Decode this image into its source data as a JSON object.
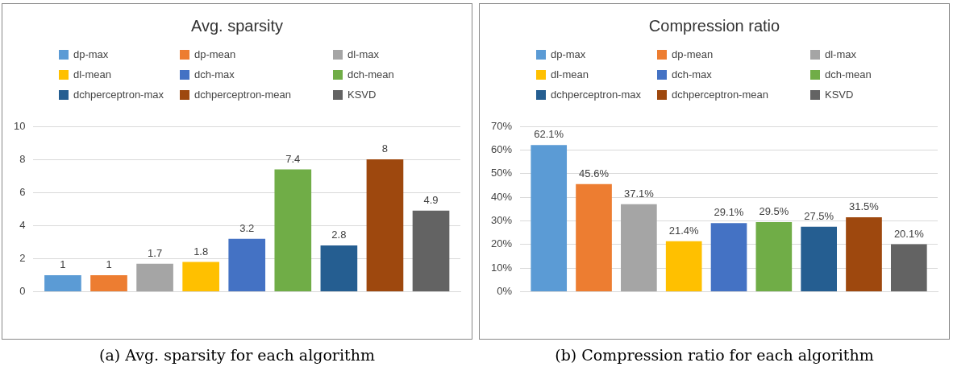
{
  "chart_data": [
    {
      "type": "bar",
      "title": "Avg. sparsity",
      "categories": [
        null
      ],
      "legend": "top",
      "grid": "y",
      "ylim": [
        0,
        10
      ],
      "yticks": [
        0,
        2,
        4,
        6,
        8,
        10
      ],
      "data_labels": true,
      "annotations": [
        "(a) Avg. sparsity for each algorithm"
      ],
      "series": [
        {
          "name": "dp-max",
          "color": "#5b9bd5",
          "values": [
            1
          ]
        },
        {
          "name": "dp-mean",
          "color": "#ed7d31",
          "values": [
            1
          ]
        },
        {
          "name": "dl-max",
          "color": "#a5a5a5",
          "values": [
            1.7
          ]
        },
        {
          "name": "dl-mean",
          "color": "#ffc000",
          "values": [
            1.8
          ]
        },
        {
          "name": "dch-max",
          "color": "#4472c4",
          "values": [
            3.2
          ]
        },
        {
          "name": "dch-mean",
          "color": "#70ad47",
          "values": [
            7.4
          ]
        },
        {
          "name": "dchperceptron-max",
          "color": "#255e91",
          "values": [
            2.8
          ]
        },
        {
          "name": "dchperceptron-mean",
          "color": "#9e480e",
          "values": [
            8
          ]
        },
        {
          "name": "KSVD",
          "color": "#636363",
          "values": [
            4.9
          ]
        }
      ]
    },
    {
      "type": "bar",
      "title": "Compression ratio",
      "categories": [
        null
      ],
      "legend": "top",
      "grid": "y",
      "ylim": [
        0,
        70
      ],
      "yticks": [
        {
          "value": 0,
          "label": "0%"
        },
        {
          "value": 10,
          "label": "10%"
        },
        {
          "value": 20,
          "label": "20%"
        },
        {
          "value": 30,
          "label": "30%"
        },
        {
          "value": 40,
          "label": "40%"
        },
        {
          "value": 50,
          "label": "50%"
        },
        {
          "value": 60,
          "label": "60%"
        },
        {
          "value": 70,
          "label": "70%"
        }
      ],
      "annotations": [
        "(b) Compression ratio for each algorithm"
      ],
      "series": [
        {
          "name": "dp-max",
          "color": "#5b9bd5",
          "values": [
            62.1
          ],
          "value_labels": [
            "62.1%"
          ]
        },
        {
          "name": "dp-mean",
          "color": "#ed7d31",
          "values": [
            45.6
          ],
          "value_labels": [
            "45.6%"
          ]
        },
        {
          "name": "dl-max",
          "color": "#a5a5a5",
          "values": [
            37.1
          ],
          "value_labels": [
            "37.1%"
          ]
        },
        {
          "name": "dl-mean",
          "color": "#ffc000",
          "values": [
            21.4
          ],
          "value_labels": [
            "21.4%"
          ]
        },
        {
          "name": "dch-max",
          "color": "#4472c4",
          "values": [
            29.1
          ],
          "value_labels": [
            "29.1%"
          ]
        },
        {
          "name": "dch-mean",
          "color": "#70ad47",
          "values": [
            29.5
          ],
          "value_labels": [
            "29.5%"
          ]
        },
        {
          "name": "dchperceptron-max",
          "color": "#255e91",
          "values": [
            27.5
          ],
          "value_labels": [
            "27.5%"
          ]
        },
        {
          "name": "dchperceptron-mean",
          "color": "#9e480e",
          "values": [
            31.5
          ],
          "value_labels": [
            "31.5%"
          ]
        },
        {
          "name": "KSVD",
          "color": "#636363",
          "values": [
            20.1
          ],
          "value_labels": [
            "20.1%"
          ]
        }
      ]
    }
  ]
}
